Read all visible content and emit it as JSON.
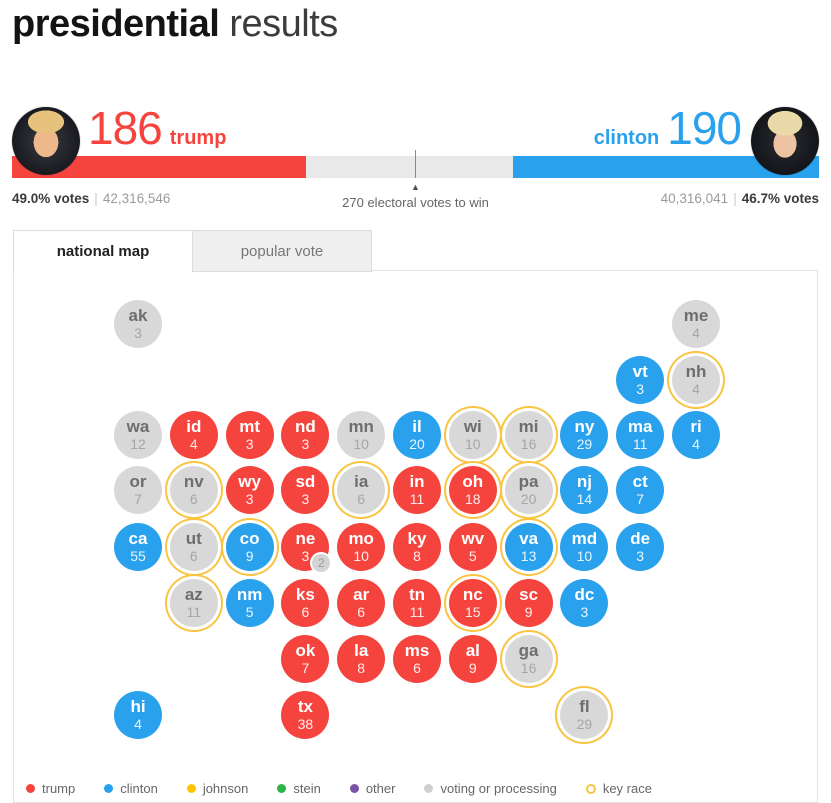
{
  "header": {
    "title_bold": "presidential",
    "title_light": "results"
  },
  "scoreboard": {
    "trump": {
      "name": "trump",
      "electoral_votes": "186",
      "vote_pct": "49.0% votes",
      "popular_votes": "42,316,546"
    },
    "clinton": {
      "name": "clinton",
      "electoral_votes": "190",
      "vote_pct": "46.7% votes",
      "popular_votes": "40,316,041"
    },
    "separator": "|",
    "marker_label": "270 electoral votes to win",
    "bar": {
      "trump_width": "36.4%",
      "clinton_width": "37.9%"
    }
  },
  "tabs": [
    {
      "label": "national map",
      "active": true
    },
    {
      "label": "popular vote",
      "active": false
    }
  ],
  "colors": {
    "trump": "#F5443E",
    "clinton": "#2AA1EC",
    "processing": "#D8D8D8",
    "key_race_ring": "#F8C442",
    "johnson": "#FFC400",
    "stein": "#2DB34A",
    "other": "#7A52A8",
    "legend_processing_dot": "#D0D0D0"
  },
  "map": {
    "states": [
      {
        "abbr": "ak",
        "ev": 3,
        "party": "processing",
        "col": 1,
        "row": 1,
        "key_race": false
      },
      {
        "abbr": "me",
        "ev": 4,
        "party": "processing",
        "col": 11,
        "row": 1,
        "key_race": false
      },
      {
        "abbr": "vt",
        "ev": 3,
        "party": "clinton",
        "col": 10,
        "row": 2,
        "key_race": false
      },
      {
        "abbr": "nh",
        "ev": 4,
        "party": "processing",
        "col": 11,
        "row": 2,
        "key_race": true
      },
      {
        "abbr": "wa",
        "ev": 12,
        "party": "processing",
        "col": 1,
        "row": 3,
        "key_race": false
      },
      {
        "abbr": "id",
        "ev": 4,
        "party": "trump",
        "col": 2,
        "row": 3,
        "key_race": false
      },
      {
        "abbr": "mt",
        "ev": 3,
        "party": "trump",
        "col": 3,
        "row": 3,
        "key_race": false
      },
      {
        "abbr": "nd",
        "ev": 3,
        "party": "trump",
        "col": 4,
        "row": 3,
        "key_race": false
      },
      {
        "abbr": "mn",
        "ev": 10,
        "party": "processing",
        "col": 5,
        "row": 3,
        "key_race": false
      },
      {
        "abbr": "il",
        "ev": 20,
        "party": "clinton",
        "col": 6,
        "row": 3,
        "key_race": false
      },
      {
        "abbr": "wi",
        "ev": 10,
        "party": "processing",
        "col": 7,
        "row": 3,
        "key_race": true
      },
      {
        "abbr": "mi",
        "ev": 16,
        "party": "processing",
        "col": 8,
        "row": 3,
        "key_race": true
      },
      {
        "abbr": "ny",
        "ev": 29,
        "party": "clinton",
        "col": 9,
        "row": 3,
        "key_race": false
      },
      {
        "abbr": "ma",
        "ev": 11,
        "party": "clinton",
        "col": 10,
        "row": 3,
        "key_race": false
      },
      {
        "abbr": "ri",
        "ev": 4,
        "party": "clinton",
        "col": 11,
        "row": 3,
        "key_race": false
      },
      {
        "abbr": "or",
        "ev": 7,
        "party": "processing",
        "col": 1,
        "row": 4,
        "key_race": false
      },
      {
        "abbr": "nv",
        "ev": 6,
        "party": "processing",
        "col": 2,
        "row": 4,
        "key_race": true
      },
      {
        "abbr": "wy",
        "ev": 3,
        "party": "trump",
        "col": 3,
        "row": 4,
        "key_race": false
      },
      {
        "abbr": "sd",
        "ev": 3,
        "party": "trump",
        "col": 4,
        "row": 4,
        "key_race": false
      },
      {
        "abbr": "ia",
        "ev": 6,
        "party": "processing",
        "col": 5,
        "row": 4,
        "key_race": true
      },
      {
        "abbr": "in",
        "ev": 11,
        "party": "trump",
        "col": 6,
        "row": 4,
        "key_race": false
      },
      {
        "abbr": "oh",
        "ev": 18,
        "party": "trump",
        "col": 7,
        "row": 4,
        "key_race": true
      },
      {
        "abbr": "pa",
        "ev": 20,
        "party": "processing",
        "col": 8,
        "row": 4,
        "key_race": true
      },
      {
        "abbr": "nj",
        "ev": 14,
        "party": "clinton",
        "col": 9,
        "row": 4,
        "key_race": false
      },
      {
        "abbr": "ct",
        "ev": 7,
        "party": "clinton",
        "col": 10,
        "row": 4,
        "key_race": false
      },
      {
        "abbr": "ca",
        "ev": 55,
        "party": "clinton",
        "col": 1,
        "row": 5,
        "key_race": false
      },
      {
        "abbr": "ut",
        "ev": 6,
        "party": "processing",
        "col": 2,
        "row": 5,
        "key_race": true
      },
      {
        "abbr": "co",
        "ev": 9,
        "party": "clinton",
        "col": 3,
        "row": 5,
        "key_race": true
      },
      {
        "abbr": "ne",
        "ev": 3,
        "party": "trump",
        "col": 4,
        "row": 5,
        "key_race": false,
        "badge": "2"
      },
      {
        "abbr": "mo",
        "ev": 10,
        "party": "trump",
        "col": 5,
        "row": 5,
        "key_race": false
      },
      {
        "abbr": "ky",
        "ev": 8,
        "party": "trump",
        "col": 6,
        "row": 5,
        "key_race": false
      },
      {
        "abbr": "wv",
        "ev": 5,
        "party": "trump",
        "col": 7,
        "row": 5,
        "key_race": false
      },
      {
        "abbr": "va",
        "ev": 13,
        "party": "clinton",
        "col": 8,
        "row": 5,
        "key_race": true
      },
      {
        "abbr": "md",
        "ev": 10,
        "party": "clinton",
        "col": 9,
        "row": 5,
        "key_race": false
      },
      {
        "abbr": "de",
        "ev": 3,
        "party": "clinton",
        "col": 10,
        "row": 5,
        "key_race": false
      },
      {
        "abbr": "az",
        "ev": 11,
        "party": "processing",
        "col": 2,
        "row": 6,
        "key_race": true
      },
      {
        "abbr": "nm",
        "ev": 5,
        "party": "clinton",
        "col": 3,
        "row": 6,
        "key_race": false
      },
      {
        "abbr": "ks",
        "ev": 6,
        "party": "trump",
        "col": 4,
        "row": 6,
        "key_race": false
      },
      {
        "abbr": "ar",
        "ev": 6,
        "party": "trump",
        "col": 5,
        "row": 6,
        "key_race": false
      },
      {
        "abbr": "tn",
        "ev": 11,
        "party": "trump",
        "col": 6,
        "row": 6,
        "key_race": false
      },
      {
        "abbr": "nc",
        "ev": 15,
        "party": "trump",
        "col": 7,
        "row": 6,
        "key_race": true
      },
      {
        "abbr": "sc",
        "ev": 9,
        "party": "trump",
        "col": 8,
        "row": 6,
        "key_race": false
      },
      {
        "abbr": "dc",
        "ev": 3,
        "party": "clinton",
        "col": 9,
        "row": 6,
        "key_race": false
      },
      {
        "abbr": "ok",
        "ev": 7,
        "party": "trump",
        "col": 4,
        "row": 7,
        "key_race": false
      },
      {
        "abbr": "la",
        "ev": 8,
        "party": "trump",
        "col": 5,
        "row": 7,
        "key_race": false
      },
      {
        "abbr": "ms",
        "ev": 6,
        "party": "trump",
        "col": 6,
        "row": 7,
        "key_race": false
      },
      {
        "abbr": "al",
        "ev": 9,
        "party": "trump",
        "col": 7,
        "row": 7,
        "key_race": false
      },
      {
        "abbr": "ga",
        "ev": 16,
        "party": "processing",
        "col": 8,
        "row": 7,
        "key_race": true
      },
      {
        "abbr": "hi",
        "ev": 4,
        "party": "clinton",
        "col": 1,
        "row": 8,
        "key_race": false
      },
      {
        "abbr": "tx",
        "ev": 38,
        "party": "trump",
        "col": 4,
        "row": 8,
        "key_race": false
      },
      {
        "abbr": "fl",
        "ev": 29,
        "party": "processing",
        "col": 9,
        "row": 8,
        "key_race": true
      }
    ]
  },
  "legend": {
    "items": [
      {
        "label": "trump",
        "type": "dot",
        "color": "#F5443E"
      },
      {
        "label": "clinton",
        "type": "dot",
        "color": "#2AA1EC"
      },
      {
        "label": "johnson",
        "type": "dot",
        "color": "#FFC400"
      },
      {
        "label": "stein",
        "type": "dot",
        "color": "#2DB34A"
      },
      {
        "label": "other",
        "type": "dot",
        "color": "#7A52A8"
      },
      {
        "label": "voting or processing",
        "type": "dot",
        "color": "#D0D0D0"
      },
      {
        "label": "key race",
        "type": "ring",
        "color": "#F8C442"
      }
    ]
  }
}
